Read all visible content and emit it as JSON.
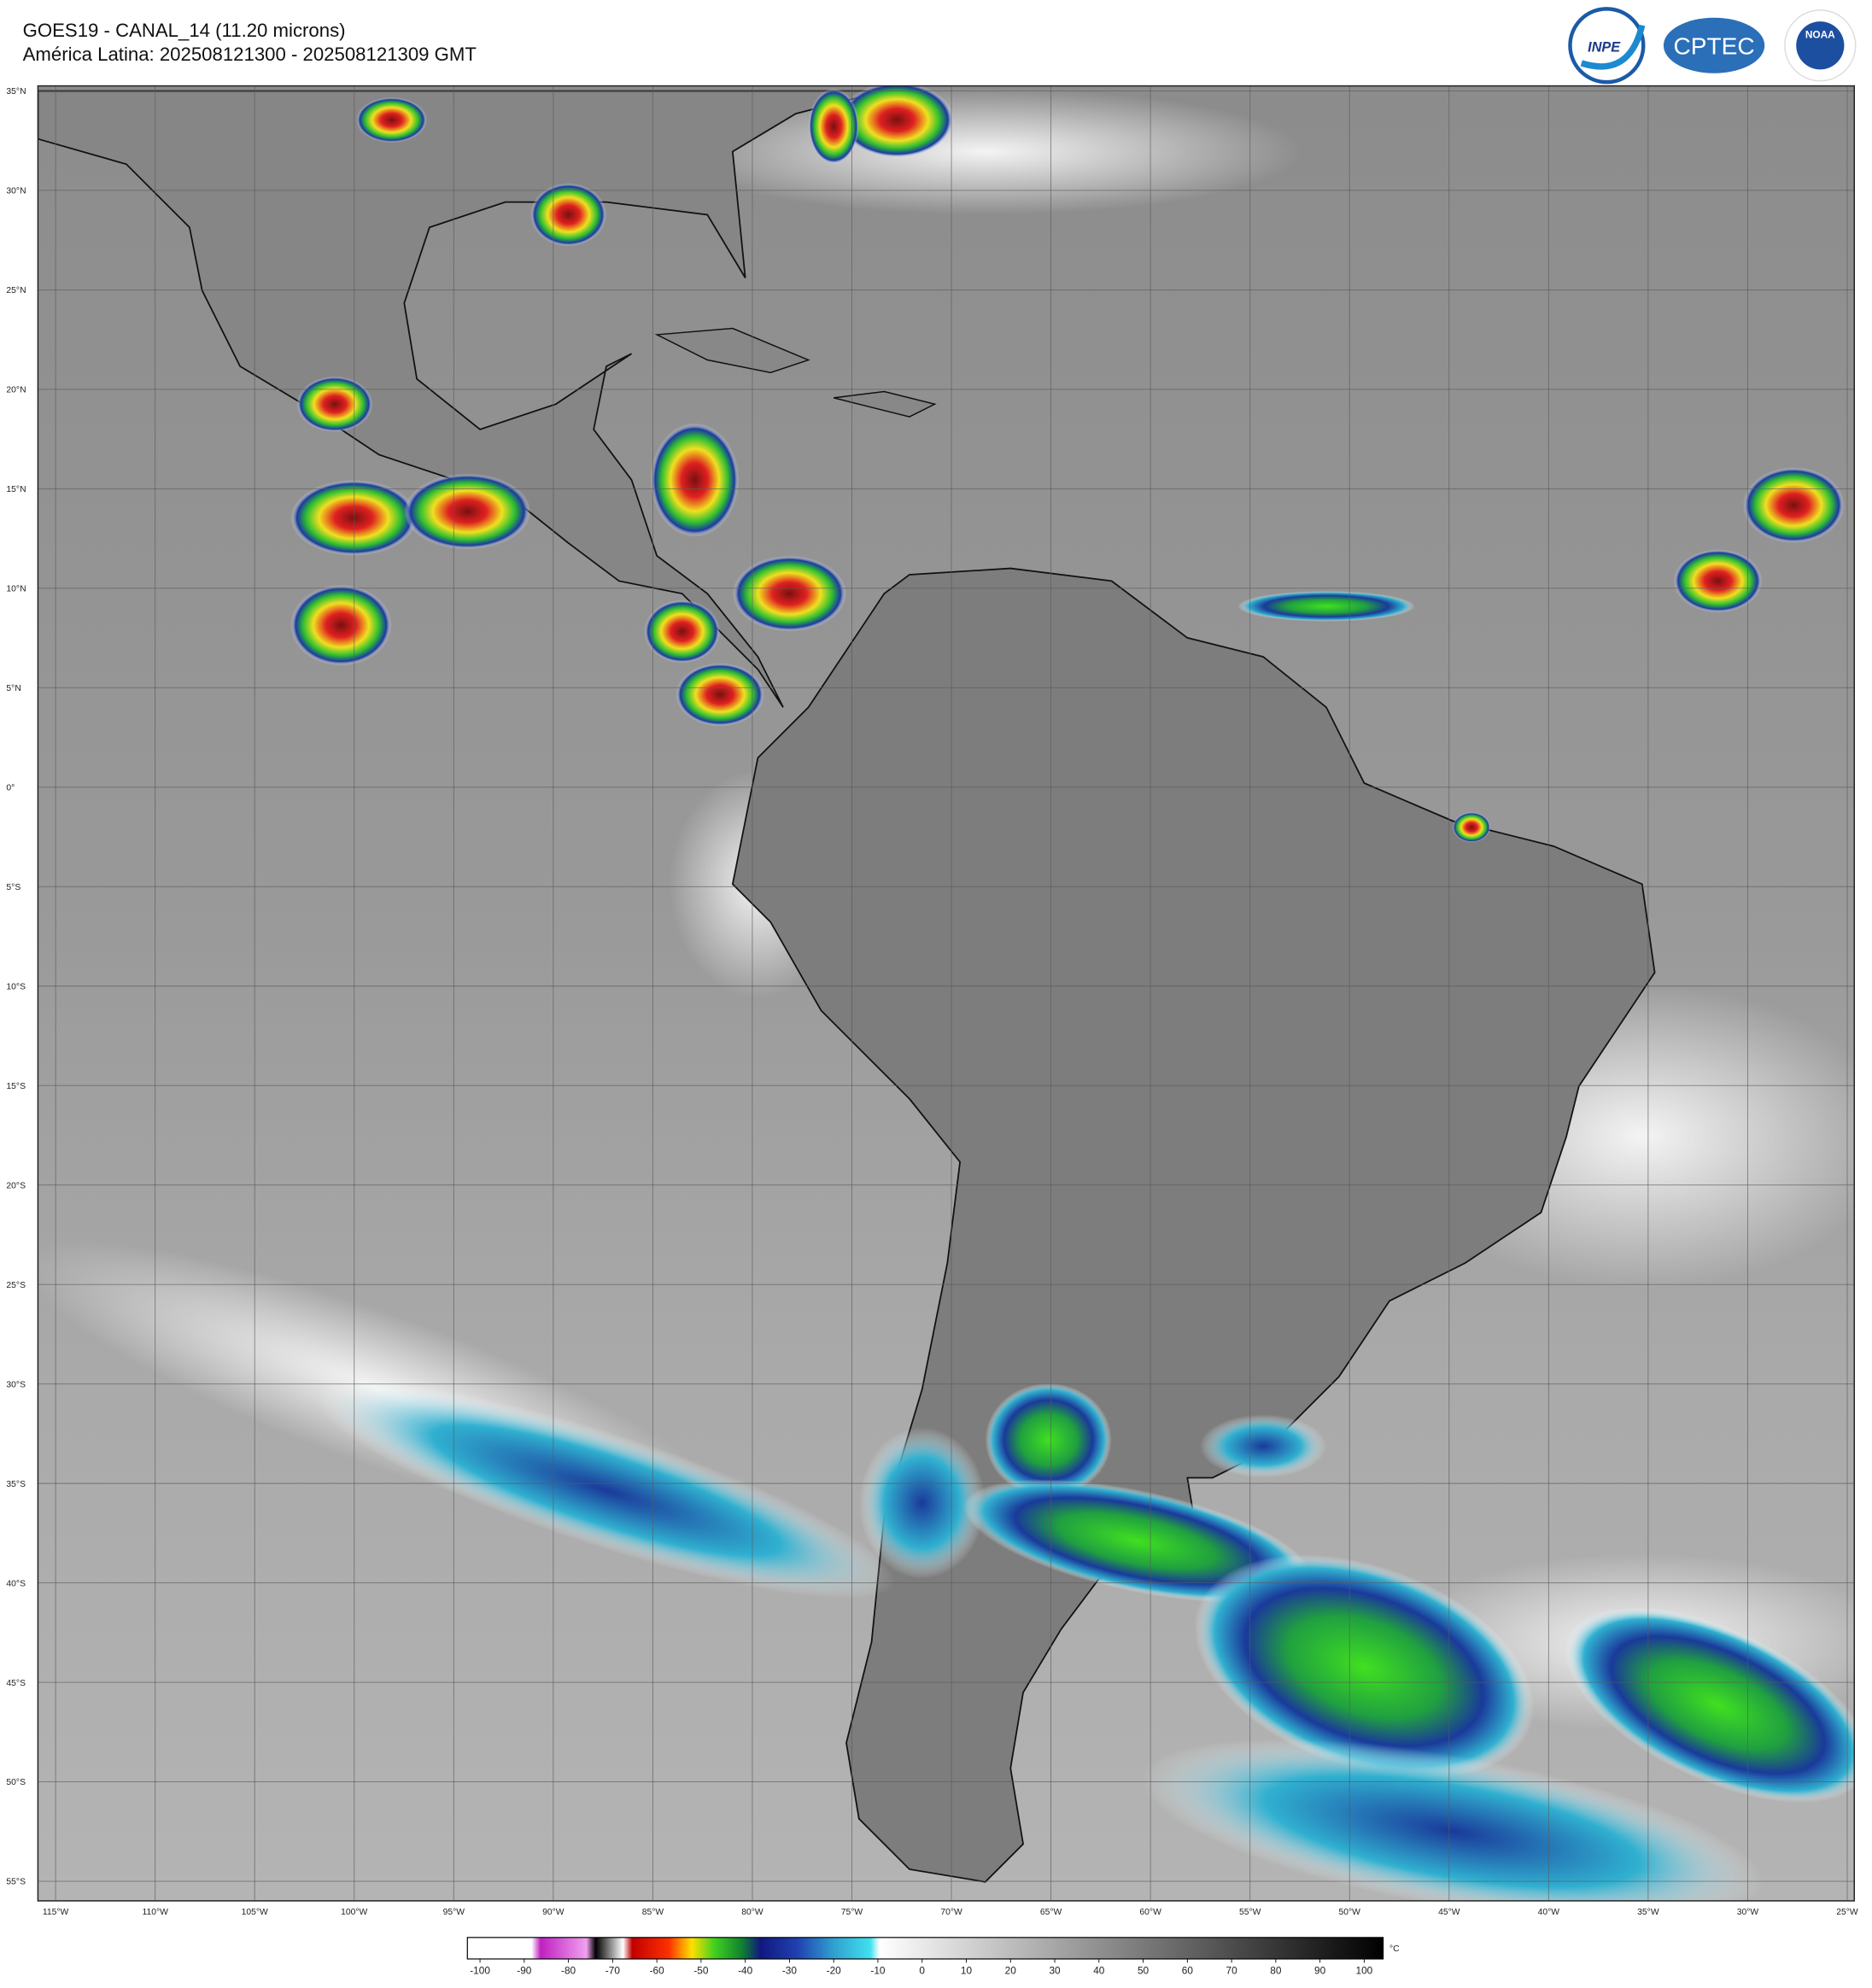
{
  "header": {
    "title": "GOES19 - CANAL_14 (11.20 microns)",
    "subtitle": "América Latina: 202508121300 - 202508121309 GMT"
  },
  "logos": [
    "INPE",
    "CPTEC",
    "NOAA"
  ],
  "map": {
    "lat_labels": [
      "35°N",
      "30°N",
      "25°N",
      "20°N",
      "15°N",
      "10°N",
      "5°N",
      "0°",
      "5°S",
      "10°S",
      "15°S",
      "20°S",
      "25°S",
      "30°S",
      "35°S",
      "40°S",
      "45°S",
      "50°S",
      "55°S"
    ],
    "lon_labels": [
      "115°W",
      "110°W",
      "105°W",
      "100°W",
      "95°W",
      "90°W",
      "85°W",
      "80°W",
      "75°W",
      "70°W",
      "65°W",
      "60°W",
      "55°W",
      "50°W",
      "45°W",
      "40°W",
      "35°W",
      "30°W",
      "25°W"
    ]
  },
  "colorbar": {
    "ticks": [
      -100,
      -90,
      -80,
      -70,
      -60,
      -50,
      -40,
      -30,
      -20,
      -10,
      0,
      10,
      20,
      30,
      40,
      50,
      60,
      70,
      80,
      90,
      100
    ],
    "unit": "°C"
  }
}
